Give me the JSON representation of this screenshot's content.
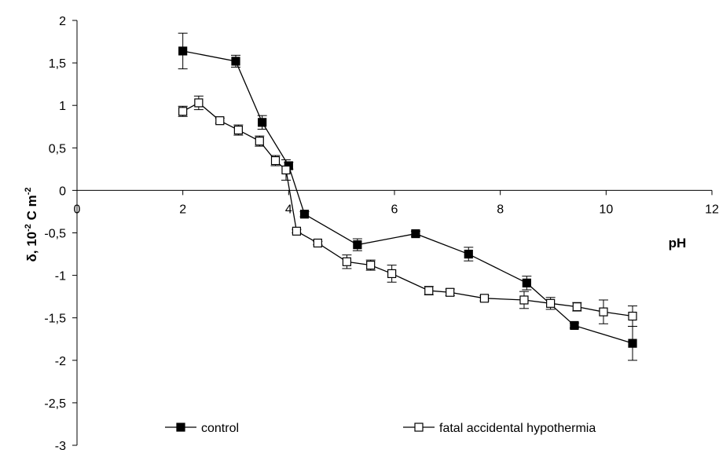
{
  "chart_data": {
    "type": "line",
    "title": "",
    "xlabel": "pH",
    "ylabel": "δ, 10-2 C m-2",
    "ylabel_parts": {
      "main": "δ, 10",
      "exp1": "-2",
      "mid": " C m",
      "exp2": "-2"
    },
    "xlim": [
      0,
      12
    ],
    "ylim": [
      -3,
      2
    ],
    "x_ticks": [
      "0",
      "2",
      "4",
      "6",
      "8",
      "10",
      "12"
    ],
    "y_ticks": [
      "2",
      "1,5",
      "1",
      "0,5",
      "0",
      "-0,5",
      "-1",
      "-1,5",
      "-2",
      "-2,5",
      "-3"
    ],
    "legend_position": "bottom",
    "grid": false,
    "series": [
      {
        "name": "control",
        "marker": "filled-square",
        "color": "#000000",
        "x": [
          2.0,
          3.0,
          3.5,
          4.0,
          4.3,
          5.3,
          6.4,
          7.4,
          8.5,
          9.4,
          10.5
        ],
        "y": [
          1.64,
          1.52,
          0.8,
          0.29,
          -0.28,
          -0.64,
          -0.51,
          -0.75,
          -1.09,
          -1.59,
          -1.8
        ],
        "error": [
          0.21,
          0.07,
          0.08,
          0.04,
          0.03,
          0.07,
          0.03,
          0.08,
          0.08,
          0.03,
          0.2
        ]
      },
      {
        "name": "fatal accidental hypothermia",
        "marker": "open-square",
        "color": "#000000",
        "x": [
          2.0,
          2.3,
          2.7,
          3.05,
          3.45,
          3.75,
          3.95,
          4.15,
          4.55,
          5.1,
          5.55,
          5.95,
          6.65,
          7.05,
          7.7,
          8.45,
          8.95,
          9.45,
          9.95,
          10.5
        ],
        "y": [
          0.93,
          1.03,
          0.82,
          0.71,
          0.58,
          0.35,
          0.24,
          -0.48,
          -0.62,
          -0.84,
          -0.88,
          -0.98,
          -1.18,
          -1.2,
          -1.27,
          -1.29,
          -1.33,
          -1.37,
          -1.43,
          -1.48
        ],
        "error": [
          0.06,
          0.08,
          0.03,
          0.06,
          0.06,
          0.06,
          0.12,
          0.02,
          0.02,
          0.08,
          0.06,
          0.1,
          0.05,
          0.04,
          0.03,
          0.1,
          0.07,
          0.05,
          0.14,
          0.12
        ]
      }
    ]
  }
}
